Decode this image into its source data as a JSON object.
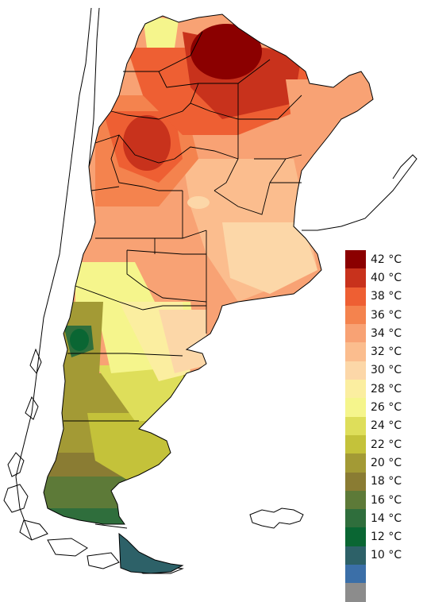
{
  "legend": {
    "entries": [
      {
        "label": "42 °C",
        "color": "#8b0000"
      },
      {
        "label": "40 °C",
        "color": "#c8321c"
      },
      {
        "label": "38 °C",
        "color": "#ee5f33"
      },
      {
        "label": "36 °C",
        "color": "#f4834e"
      },
      {
        "label": "34 °C",
        "color": "#f8a274"
      },
      {
        "label": "32 °C",
        "color": "#fbbd8e"
      },
      {
        "label": "30 °C",
        "color": "#fcd7a8"
      },
      {
        "label": "28 °C",
        "color": "#fbeea0"
      },
      {
        "label": "26 °C",
        "color": "#f5f58c"
      },
      {
        "label": "24 °C",
        "color": "#dede5a"
      },
      {
        "label": "22 °C",
        "color": "#c4c23a"
      },
      {
        "label": "20 °C",
        "color": "#a39a35"
      },
      {
        "label": "18 °C",
        "color": "#8a7c33"
      },
      {
        "label": "16 °C",
        "color": "#5d7a38"
      },
      {
        "label": "14 °C",
        "color": "#2f6e3c"
      },
      {
        "label": "12 °C",
        "color": "#0a6633"
      },
      {
        "label": "10 °C",
        "color": "#2d6168"
      }
    ],
    "extra_colors": [
      "#3b6fa8",
      "#8c8c8c"
    ]
  },
  "colors": {
    "outline": "#000000",
    "background": "#ffffff"
  }
}
